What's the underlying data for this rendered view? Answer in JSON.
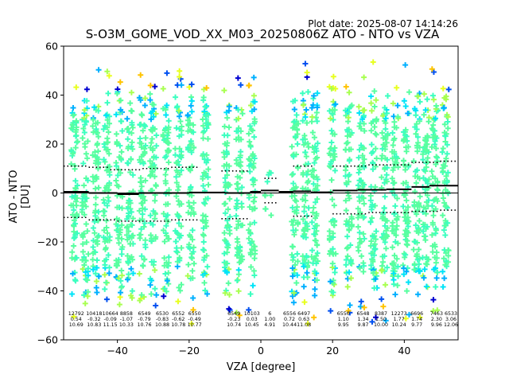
{
  "header": {
    "plot_date": "Plot date: 2025-08-07 14:14:26",
    "title": "S-O3M_GOME_VOD_XX_M03_20250806Z ATO - NTO vs VZA"
  },
  "chart_data": {
    "type": "scatter",
    "title": "S-O3M_GOME_VOD_XX_M03_20250806Z ATO - NTO vs VZA",
    "xlabel": "VZA [degree]",
    "ylabel": "ATO - NTO [DU]",
    "xlim": [
      -55,
      55
    ],
    "ylim": [
      -60,
      60
    ],
    "xticks": [
      -40,
      -20,
      0,
      20,
      40
    ],
    "yticks": [
      -60,
      -40,
      -20,
      0,
      20,
      40,
      60
    ],
    "grid": false,
    "zero_line": 0,
    "scatter_columns_x": [
      -52,
      -49,
      -46,
      -43,
      -39.5,
      -36.5,
      -33,
      -30,
      -26.5,
      -23,
      -19.5,
      -15.5,
      -9.5,
      -6,
      -2.5,
      2,
      9.5,
      12.5,
      15,
      20,
      24.5,
      28,
      31.5,
      34.5,
      37.5,
      40.5,
      43.5,
      46,
      48.5,
      51.5
    ],
    "scatter_colors": [
      "#58ffa0",
      "#3cffc0",
      "#00e4f8",
      "#00b0ff",
      "#a8ff50",
      "#ffc400",
      "#e8ff20",
      "#0050f0",
      "#0000d0"
    ],
    "mean_line": [
      {
        "x0": -55,
        "x1": -48,
        "y": 0.5
      },
      {
        "x0": -48,
        "x1": -40,
        "y": 0
      },
      {
        "x0": -40,
        "x1": -34,
        "y": -0.5
      },
      {
        "x0": -34,
        "x1": -20,
        "y": 0
      },
      {
        "x0": -20,
        "x1": -10,
        "y": 0.2
      },
      {
        "x0": -10,
        "x1": -3,
        "y": 0
      },
      {
        "x0": -3,
        "x1": 0,
        "y": 0.5
      },
      {
        "x0": 0,
        "x1": 5,
        "y": 1
      },
      {
        "x0": 5,
        "x1": 9,
        "y": 0.5
      },
      {
        "x0": 9,
        "x1": 14,
        "y": 0.7
      },
      {
        "x0": 14,
        "x1": 20,
        "y": 0.3
      },
      {
        "x0": 20,
        "x1": 27,
        "y": 1
      },
      {
        "x0": 27,
        "x1": 35,
        "y": 1.3
      },
      {
        "x0": 35,
        "x1": 42,
        "y": 1.5
      },
      {
        "x0": 42,
        "x1": 47,
        "y": 2.5
      },
      {
        "x0": 47,
        "x1": 52,
        "y": 3
      },
      {
        "x0": 52,
        "x1": 55,
        "y": 3
      }
    ],
    "upper_std_line": [
      {
        "x0": -55,
        "x1": -48,
        "y": 11
      },
      {
        "x0": -48,
        "x1": -42,
        "y": 10.5
      },
      {
        "x0": -42,
        "x1": -33,
        "y": 9.5
      },
      {
        "x0": -33,
        "x1": -25,
        "y": 10
      },
      {
        "x0": -25,
        "x1": -17,
        "y": 10.5
      },
      {
        "x0": -11,
        "x1": -3,
        "y": 9
      },
      {
        "x0": 1,
        "x1": 5,
        "y": 6
      },
      {
        "x0": 9,
        "x1": 15,
        "y": 11
      },
      {
        "x0": 20,
        "x1": 30,
        "y": 11
      },
      {
        "x0": 30,
        "x1": 42,
        "y": 11.5
      },
      {
        "x0": 42,
        "x1": 50,
        "y": 12.5
      },
      {
        "x0": 50,
        "x1": 55,
        "y": 13
      }
    ],
    "lower_std_line": [
      {
        "x0": -55,
        "x1": -48,
        "y": -10
      },
      {
        "x0": -48,
        "x1": -40,
        "y": -11
      },
      {
        "x0": -40,
        "x1": -25,
        "y": -11.5
      },
      {
        "x0": -25,
        "x1": -17,
        "y": -11
      },
      {
        "x0": -11,
        "x1": -3,
        "y": -10.5
      },
      {
        "x0": 1,
        "x1": 5,
        "y": -4
      },
      {
        "x0": 9,
        "x1": 15,
        "y": -9.5
      },
      {
        "x0": 20,
        "x1": 30,
        "y": -8.5
      },
      {
        "x0": 30,
        "x1": 42,
        "y": -8
      },
      {
        "x0": 42,
        "x1": 50,
        "y": -7.5
      },
      {
        "x0": 50,
        "x1": 55,
        "y": -7
      }
    ],
    "bin_annotations": [
      {
        "x": -51.5,
        "count": "12792",
        "mean": "0.54",
        "std": "10.69"
      },
      {
        "x": -46.5,
        "count": "10418",
        "mean": "-0.32",
        "std": "10.83"
      },
      {
        "x": -42,
        "count": "10664",
        "mean": "-0.09",
        "std": "11.15"
      },
      {
        "x": -37.5,
        "count": "8858",
        "mean": "-1.07",
        "std": "10.33"
      },
      {
        "x": -32.5,
        "count": "6549",
        "mean": "-0.79",
        "std": "10.76"
      },
      {
        "x": -27.5,
        "count": "6530",
        "mean": "-0.83",
        "std": "10.88"
      },
      {
        "x": -23,
        "count": "6552",
        "mean": "-0.62",
        "std": "10.78"
      },
      {
        "x": -18.5,
        "count": "6550",
        "mean": "-0.49",
        "std": "10.77"
      },
      {
        "x": -7.5,
        "count": "6549",
        "mean": "-0.23",
        "std": "10.74"
      },
      {
        "x": -2.5,
        "count": "10103",
        "mean": "0.03",
        "std": "10.45"
      },
      {
        "x": 2.5,
        "count": "6",
        "mean": "1.00",
        "std": "4.91"
      },
      {
        "x": 8,
        "count": "6556",
        "mean": "0.72",
        "std": "10.44"
      },
      {
        "x": 12,
        "count": "6497",
        "mean": "0.63",
        "std": "11.08"
      },
      {
        "x": 23,
        "count": "6550",
        "mean": "1.10",
        "std": "9.95"
      },
      {
        "x": 28.5,
        "count": "6548",
        "mean": "1.34",
        "std": "9.87"
      },
      {
        "x": 33.5,
        "count": "8387",
        "mean": "1.50",
        "std": "10.00"
      },
      {
        "x": 38.5,
        "count": "12273",
        "mean": "1.77",
        "std": "10.24"
      },
      {
        "x": 43.5,
        "count": "6696",
        "mean": "1.74",
        "std": "9.77"
      },
      {
        "x": 49,
        "count": "7463",
        "mean": "2.30",
        "std": "9.96"
      },
      {
        "x": 53,
        "count": "6533",
        "mean": "3.06",
        "std": "12.06"
      }
    ]
  }
}
